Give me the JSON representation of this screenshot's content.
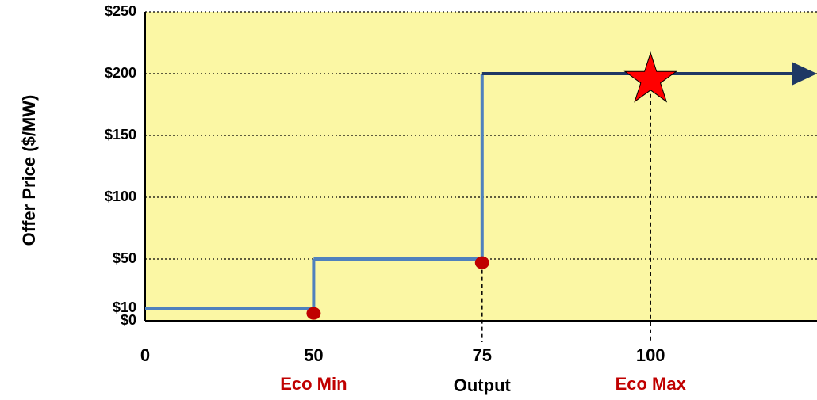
{
  "chart_data": {
    "type": "step",
    "y_label": "Offer Price ($/MW)",
    "x_label": "Output",
    "categories": [
      0,
      50,
      75,
      100
    ],
    "step_values": [
      10,
      50,
      200
    ],
    "line_color": "#4f81bd",
    "arrow_color": "#1f3864",
    "plot_color": "#fbf7a4",
    "ylim": [
      0,
      250
    ],
    "yticks": [
      {
        "value": 0,
        "label": "$0"
      },
      {
        "value": 10,
        "label": "$10"
      },
      {
        "value": 50,
        "label": "$50"
      },
      {
        "value": 100,
        "label": "$100"
      },
      {
        "value": 150,
        "label": "$150"
      },
      {
        "value": 200,
        "label": "$200"
      },
      {
        "value": 250,
        "label": "$250"
      }
    ],
    "grid": true,
    "markers": [
      {
        "x": 50,
        "y": 6,
        "shape": "dot",
        "color": "#c00000",
        "drop_line": false
      },
      {
        "x": 75,
        "y": 47,
        "shape": "dot",
        "color": "#c00000",
        "drop_line": true
      },
      {
        "x": 100,
        "y": 195,
        "shape": "star",
        "color": "#ff0000",
        "drop_line": true
      }
    ],
    "annotations": [
      {
        "text": "Eco Min",
        "x": 50,
        "color": "#c00000"
      },
      {
        "text": "Eco Max",
        "x": 100,
        "color": "#c00000"
      }
    ]
  }
}
